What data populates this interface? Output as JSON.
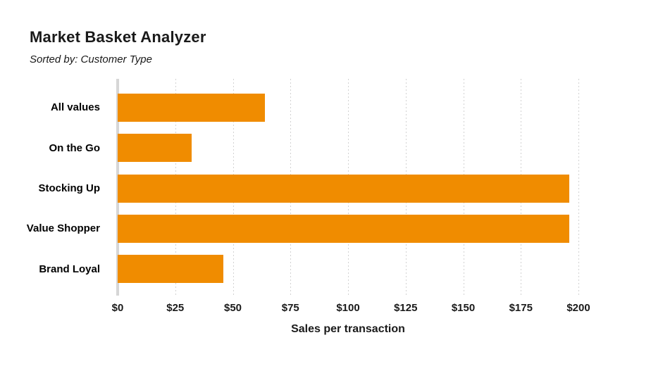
{
  "title": "Market Basket Analyzer",
  "subtitle": "Sorted by: Customer Type",
  "colors": {
    "bar": "#F08C00",
    "axis_line": "#D6D6D6",
    "gridline": "#D2D2D2",
    "text": "#1A1A1A"
  },
  "chart_data": {
    "type": "bar",
    "orientation": "horizontal",
    "title": "Market Basket Analyzer",
    "subtitle": "Sorted by: Customer Type",
    "categories": [
      "All values",
      "On the Go",
      "Stocking Up",
      "Value Shopper",
      "Brand Loyal"
    ],
    "values": [
      64,
      32,
      196,
      196,
      46
    ],
    "xlabel": "Sales per transaction",
    "ylabel": "",
    "xlim": [
      0,
      200
    ],
    "tick_step": 25,
    "xticks": [
      "$0",
      "$25",
      "$50",
      "$75",
      "$100",
      "$125",
      "$150",
      "$175",
      "$200"
    ],
    "grid": "dotted-vertical",
    "legend": "none",
    "bar_color": "#F08C00"
  }
}
